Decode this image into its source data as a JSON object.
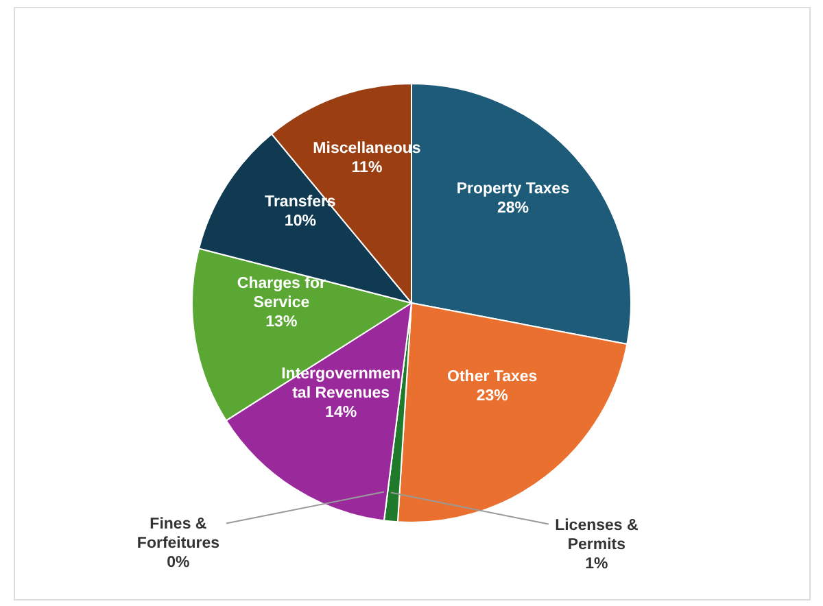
{
  "chart_data": {
    "type": "pie",
    "categories": [
      "Property Taxes",
      "Other Taxes",
      "Licenses & Permits",
      "Fines & Forfeitures",
      "Intergovernmental Revenues",
      "Charges for Service",
      "Transfers",
      "Miscellaneous"
    ],
    "values": [
      28,
      23,
      1,
      0,
      14,
      13,
      10,
      11
    ],
    "value_labels": [
      "28%",
      "23%",
      "1%",
      "0%",
      "14%",
      "13%",
      "10%",
      "11%"
    ],
    "colors": [
      "#1d5b79",
      "#e9702e",
      "#1f7a2c",
      "#2f6e3a",
      "#9a2a9c",
      "#5aa833",
      "#0f3a52",
      "#9b3f13"
    ]
  }
}
